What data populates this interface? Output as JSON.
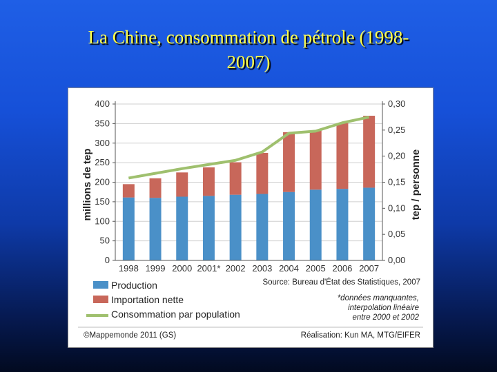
{
  "slide": {
    "title_line1": "La Chine, consommation de pétrole (1998-",
    "title_line2": "2007)"
  },
  "colors": {
    "production": "#4a90c8",
    "importation": "#c8675a",
    "consommation": "#9fc06e",
    "title": "#ffff4d"
  },
  "chart_data": {
    "type": "bar",
    "stacked": true,
    "categories": [
      "1998",
      "1999",
      "2000",
      "2001*",
      "2002",
      "2003",
      "2004",
      "2005",
      "2006",
      "2007"
    ],
    "series": [
      {
        "name": "Production",
        "values": [
          161,
          160,
          163,
          165,
          168,
          170,
          175,
          181,
          183,
          186
        ],
        "axis": "left"
      },
      {
        "name": "Importation nette",
        "values": [
          34,
          50,
          62,
          73,
          83,
          105,
          153,
          151,
          168,
          184
        ],
        "axis": "left"
      },
      {
        "name": "Consommation par population",
        "type": "line",
        "values": [
          0.158,
          0.167,
          0.176,
          0.184,
          0.192,
          0.208,
          0.244,
          0.248,
          0.264,
          0.275
        ],
        "axis": "right"
      }
    ],
    "ylabel": "millions de tep",
    "y2label": "tep / personne",
    "ylim": [
      0,
      400
    ],
    "y2lim": [
      0,
      0.3
    ],
    "yticks": [
      "0",
      "50",
      "100",
      "150",
      "200",
      "250",
      "300",
      "350",
      "400"
    ],
    "y2ticks": [
      "0,00",
      "0,05",
      "0,10",
      "0,15",
      "0,20",
      "0,25",
      "0,30"
    ],
    "grid": true,
    "legend": "bottom-left",
    "source": "Source: Bureau d'État des Statistiques, 2007",
    "note_line1": "*données manquantes,",
    "note_line2": "interpolation linéaire",
    "note_line3": "entre 2000 et 2002",
    "credit": "©Mappemonde 2011 (GS)",
    "realisation": "Réalisation: Kun MA, MTG/EIFER"
  }
}
